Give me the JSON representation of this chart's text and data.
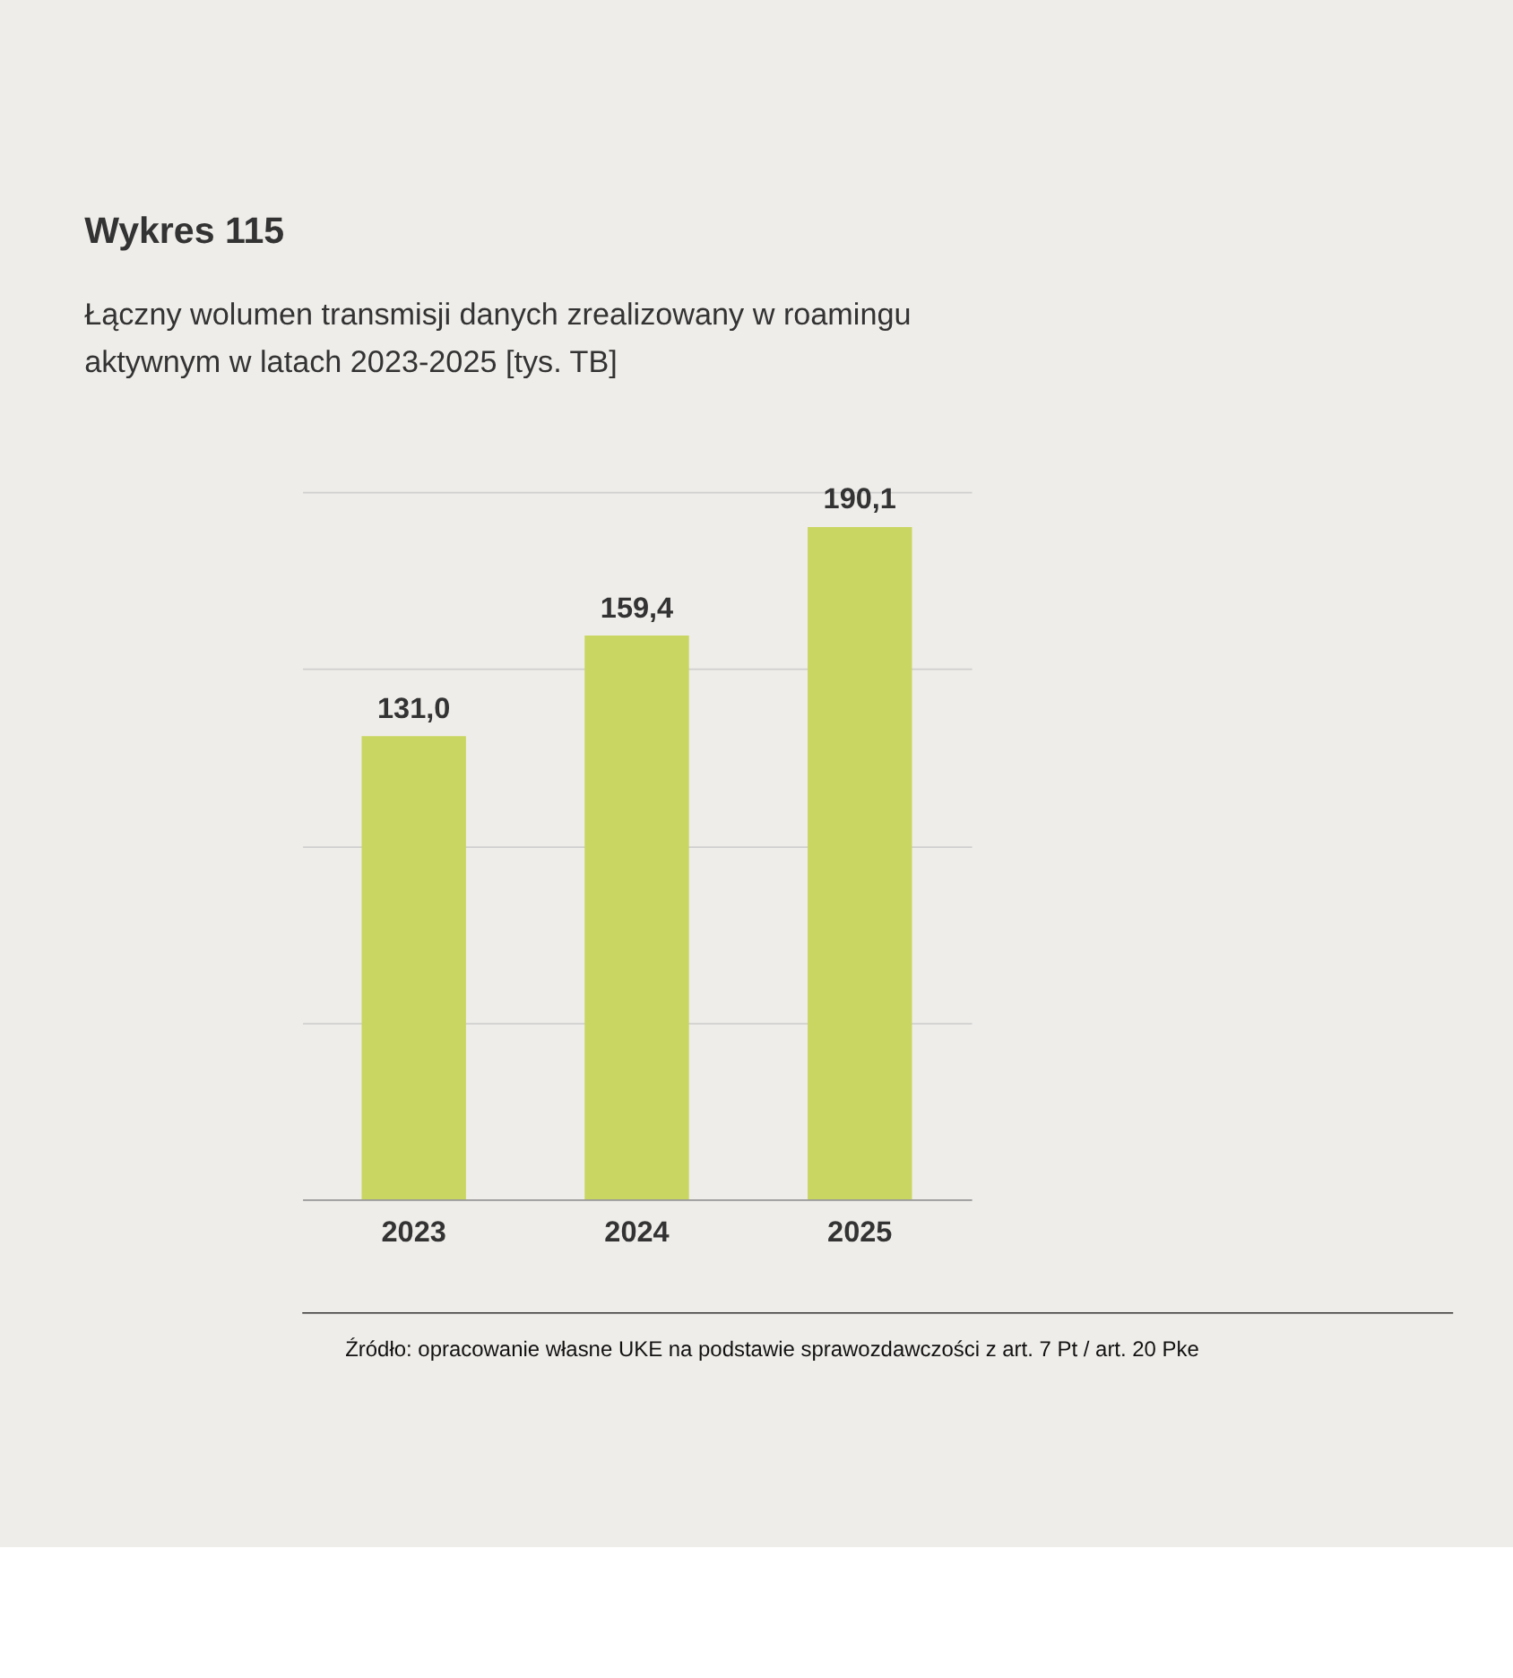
{
  "chart_data": {
    "type": "bar",
    "title": "Wykres 115",
    "subtitle": "Łączny wolumen transmisji danych zrealizowany w roamingu aktywnym w latach 2023-2025 [tys. TB]",
    "categories": [
      "2023",
      "2024",
      "2025"
    ],
    "values": [
      131.0,
      159.4,
      190.1
    ],
    "value_labels": [
      "131,0",
      "159,4",
      "190,1"
    ],
    "color": "#c9d661",
    "ylim": [
      0,
      200
    ],
    "yticks": [
      {
        "value": 0,
        "label": null
      },
      {
        "value": 50,
        "label": null
      },
      {
        "value": 100,
        "label": null
      },
      {
        "value": 150,
        "label": null
      },
      {
        "value": 200,
        "label": null
      }
    ],
    "tick_labels": "x",
    "grid": "y",
    "annotations": [
      "Źródło: opracowanie własne UKE na podstawie sprawozdawczości z art. 7 Pt / art. 20 Pke"
    ]
  }
}
